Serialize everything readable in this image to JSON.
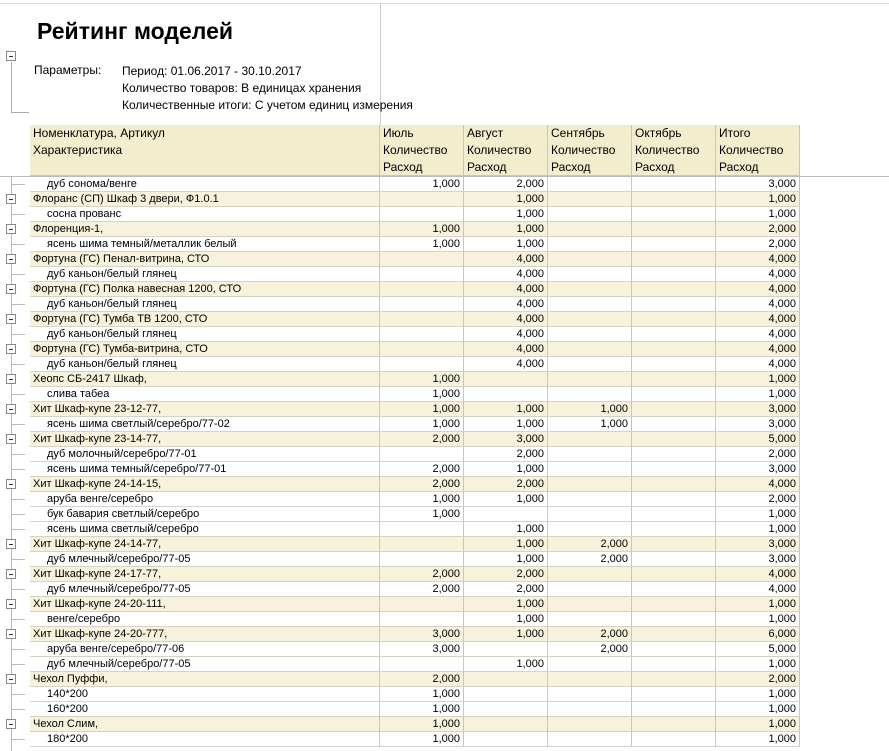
{
  "title": "Рейтинг моделей",
  "parameters": {
    "label": "Параметры:",
    "lines": [
      "Период: 01.06.2017 - 30.10.2017",
      "Количество товаров: В единицах хранения",
      "Количественные итоги: С учетом единиц измерения"
    ]
  },
  "table": {
    "header": [
      [
        "Номенклатура, Артикул",
        "Июль",
        "Август",
        "Сентябрь",
        "Октябрь",
        "Итого"
      ],
      [
        "Характеристика",
        "Количество",
        "Количество",
        "Количество",
        "Количество",
        "Количество"
      ],
      [
        null,
        "Расход",
        "Расход",
        "Расход",
        "Расход",
        "Расход"
      ]
    ],
    "rows": [
      {
        "group": false,
        "cells": [
          "дуб сонома/венге",
          "1,000",
          "2,000",
          null,
          null,
          "3,000"
        ]
      },
      {
        "group": true,
        "cells": [
          "Флоранс (СП) Шкаф 3 двери, Ф1.0.1",
          null,
          "1,000",
          null,
          null,
          "1,000"
        ]
      },
      {
        "group": false,
        "cells": [
          "сосна прованс",
          null,
          "1,000",
          null,
          null,
          "1,000"
        ]
      },
      {
        "group": true,
        "cells": [
          "Флоренция-1,",
          "1,000",
          "1,000",
          null,
          null,
          "2,000"
        ]
      },
      {
        "group": false,
        "cells": [
          "ясень шима темный/металлик белый",
          "1,000",
          "1,000",
          null,
          null,
          "2,000"
        ]
      },
      {
        "group": true,
        "cells": [
          "Фортуна (ГС) Пенал-витрина, СТО",
          null,
          "4,000",
          null,
          null,
          "4,000"
        ]
      },
      {
        "group": false,
        "cells": [
          "дуб каньон/белый глянец",
          null,
          "4,000",
          null,
          null,
          "4,000"
        ]
      },
      {
        "group": true,
        "cells": [
          "Фортуна (ГС) Полка навесная 1200, СТО",
          null,
          "4,000",
          null,
          null,
          "4,000"
        ]
      },
      {
        "group": false,
        "cells": [
          "дуб каньон/белый глянец",
          null,
          "4,000",
          null,
          null,
          "4,000"
        ]
      },
      {
        "group": true,
        "cells": [
          "Фортуна (ГС) Тумба ТВ 1200, СТО",
          null,
          "4,000",
          null,
          null,
          "4,000"
        ]
      },
      {
        "group": false,
        "cells": [
          "дуб каньон/белый глянец",
          null,
          "4,000",
          null,
          null,
          "4,000"
        ]
      },
      {
        "group": true,
        "cells": [
          "Фортуна (ГС) Тумба-витрина, СТО",
          null,
          "4,000",
          null,
          null,
          "4,000"
        ]
      },
      {
        "group": false,
        "cells": [
          "дуб каньон/белый глянец",
          null,
          "4,000",
          null,
          null,
          "4,000"
        ]
      },
      {
        "group": true,
        "cells": [
          "Хеопс СБ-2417 Шкаф,",
          "1,000",
          null,
          null,
          null,
          "1,000"
        ]
      },
      {
        "group": false,
        "cells": [
          "слива табеа",
          "1,000",
          null,
          null,
          null,
          "1,000"
        ]
      },
      {
        "group": true,
        "cells": [
          "Хит Шкаф-купе 23-12-77,",
          "1,000",
          "1,000",
          "1,000",
          null,
          "3,000"
        ]
      },
      {
        "group": false,
        "cells": [
          "ясень шима светлый/серебро/77-02",
          "1,000",
          "1,000",
          "1,000",
          null,
          "3,000"
        ]
      },
      {
        "group": true,
        "cells": [
          "Хит Шкаф-купе 23-14-77,",
          "2,000",
          "3,000",
          null,
          null,
          "5,000"
        ]
      },
      {
        "group": false,
        "cells": [
          "дуб молочный/серебро/77-01",
          null,
          "2,000",
          null,
          null,
          "2,000"
        ]
      },
      {
        "group": false,
        "cells": [
          "ясень шима темный/серебро/77-01",
          "2,000",
          "1,000",
          null,
          null,
          "3,000"
        ]
      },
      {
        "group": true,
        "cells": [
          "Хит Шкаф-купе 24-14-15,",
          "2,000",
          "2,000",
          null,
          null,
          "4,000"
        ]
      },
      {
        "group": false,
        "cells": [
          "аруба венге/серебро",
          "1,000",
          "1,000",
          null,
          null,
          "2,000"
        ]
      },
      {
        "group": false,
        "cells": [
          "бук бавария светлый/серебро",
          "1,000",
          null,
          null,
          null,
          "1,000"
        ]
      },
      {
        "group": false,
        "cells": [
          "ясень шима светлый/серебро",
          null,
          "1,000",
          null,
          null,
          "1,000"
        ]
      },
      {
        "group": true,
        "cells": [
          "Хит Шкаф-купе 24-14-77,",
          null,
          "1,000",
          "2,000",
          null,
          "3,000"
        ]
      },
      {
        "group": false,
        "cells": [
          "дуб млечный/серебро/77-05",
          null,
          "1,000",
          "2,000",
          null,
          "3,000"
        ]
      },
      {
        "group": true,
        "cells": [
          "Хит Шкаф-купе 24-17-77,",
          "2,000",
          "2,000",
          null,
          null,
          "4,000"
        ]
      },
      {
        "group": false,
        "cells": [
          "дуб млечный/серебро/77-05",
          "2,000",
          "2,000",
          null,
          null,
          "4,000"
        ]
      },
      {
        "group": true,
        "cells": [
          "Хит Шкаф-купе 24-20-111,",
          null,
          "1,000",
          null,
          null,
          "1,000"
        ]
      },
      {
        "group": false,
        "cells": [
          "венге/серебро",
          null,
          "1,000",
          null,
          null,
          "1,000"
        ]
      },
      {
        "group": true,
        "cells": [
          "Хит Шкаф-купе 24-20-777,",
          "3,000",
          "1,000",
          "2,000",
          null,
          "6,000"
        ]
      },
      {
        "group": false,
        "cells": [
          "аруба венге/серебро/77-06",
          "3,000",
          null,
          "2,000",
          null,
          "5,000"
        ]
      },
      {
        "group": false,
        "cells": [
          "дуб млечный/серебро/77-05",
          null,
          "1,000",
          null,
          null,
          "1,000"
        ]
      },
      {
        "group": true,
        "cells": [
          "Чехол Пуффи,",
          "2,000",
          null,
          null,
          null,
          "2,000"
        ]
      },
      {
        "group": false,
        "cells": [
          "140*200",
          "1,000",
          null,
          null,
          null,
          "1,000"
        ]
      },
      {
        "group": false,
        "cells": [
          "160*200",
          "1,000",
          null,
          null,
          null,
          "1,000"
        ]
      },
      {
        "group": true,
        "cells": [
          "Чехол Слим,",
          "1,000",
          null,
          null,
          null,
          "1,000"
        ]
      },
      {
        "group": false,
        "cells": [
          "180*200",
          "1,000",
          null,
          null,
          null,
          "1,000"
        ]
      }
    ]
  }
}
